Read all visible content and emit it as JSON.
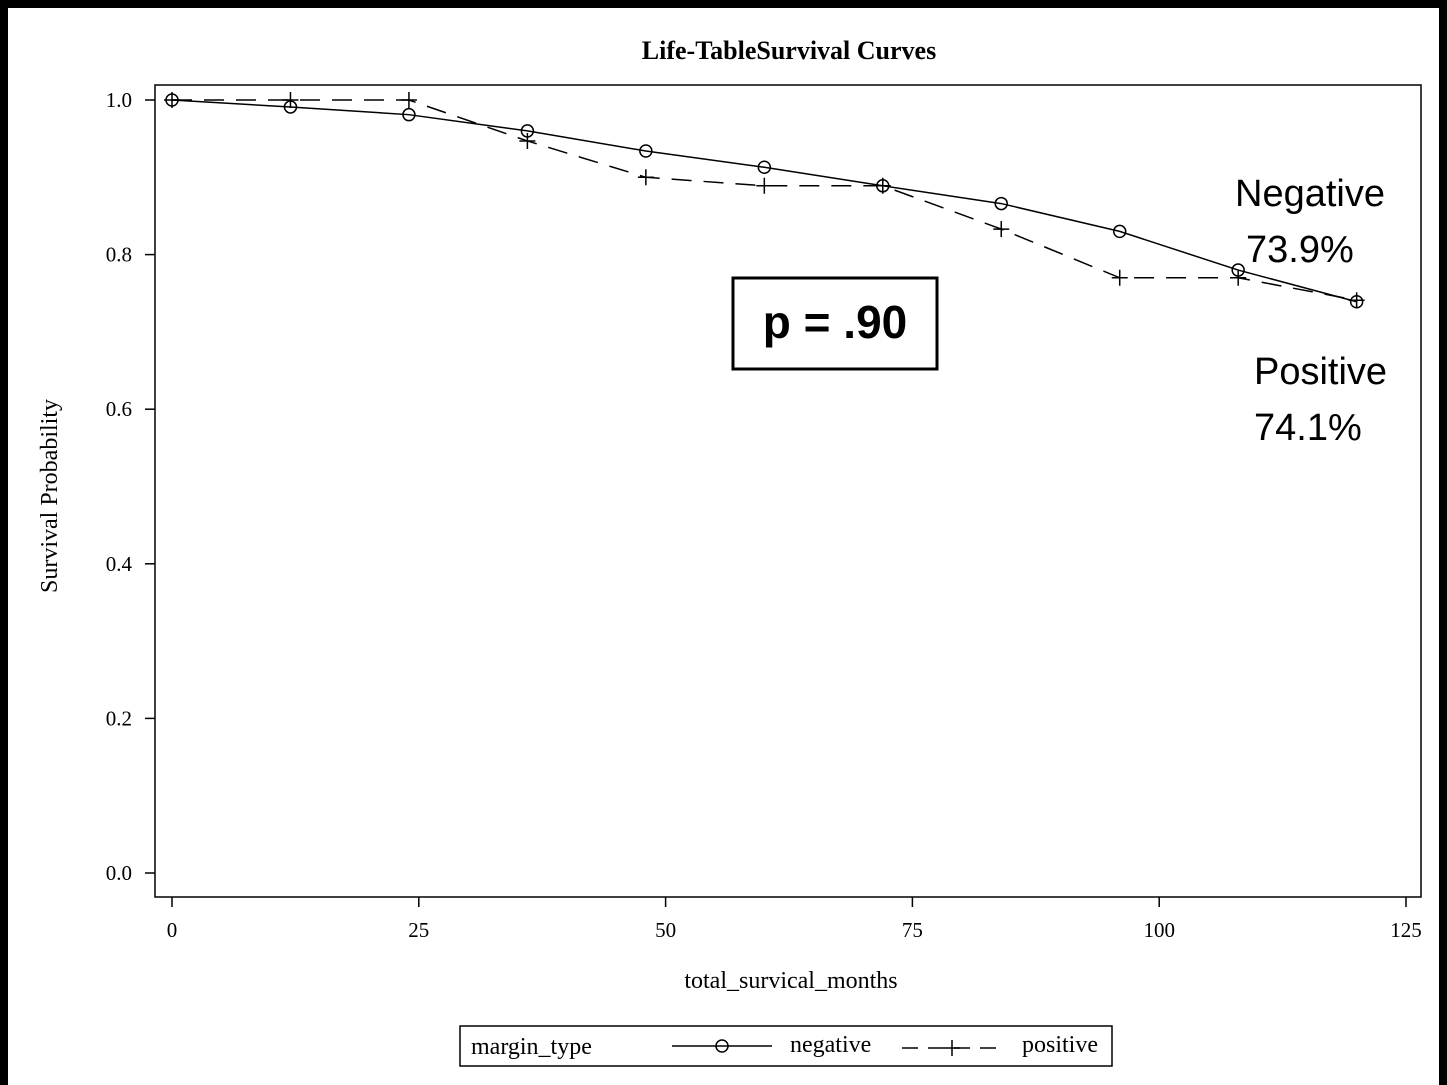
{
  "chart_data": {
    "type": "line",
    "title": "Life-TableSurvival Curves",
    "xlabel": "total_survical_months",
    "ylabel": "Survival Probability",
    "xlim": [
      0,
      125
    ],
    "ylim": [
      0.0,
      1.0
    ],
    "xticks": [
      "0",
      "25",
      "50",
      "75",
      "100",
      "125"
    ],
    "yticks": [
      "0.0",
      "0.2",
      "0.4",
      "0.6",
      "0.8",
      "1.0"
    ],
    "grid": false,
    "legend": {
      "title": "margin_type",
      "placement": "bottom",
      "entries": [
        {
          "label": "negative",
          "marker": "circle",
          "line": "solid"
        },
        {
          "label": "positive",
          "marker": "plus",
          "line": "dashed"
        }
      ]
    },
    "series": [
      {
        "name": "negative",
        "x": [
          0,
          12,
          24,
          36,
          48,
          60,
          72,
          84,
          96,
          108,
          120
        ],
        "y": [
          1.0,
          0.991,
          0.981,
          0.96,
          0.934,
          0.913,
          0.889,
          0.866,
          0.83,
          0.78,
          0.739
        ]
      },
      {
        "name": "positive",
        "x": [
          0,
          12,
          24,
          36,
          48,
          60,
          72,
          84,
          96,
          108,
          120
        ],
        "y": [
          1.0,
          1.0,
          1.0,
          0.947,
          0.9,
          0.889,
          0.889,
          0.833,
          0.77,
          0.77,
          0.741
        ]
      }
    ],
    "annotations": {
      "p_value": "p = .90",
      "negative_name": "Negative",
      "negative_pct": "73.9%",
      "positive_name": "Positive",
      "positive_pct": "74.1%"
    }
  }
}
